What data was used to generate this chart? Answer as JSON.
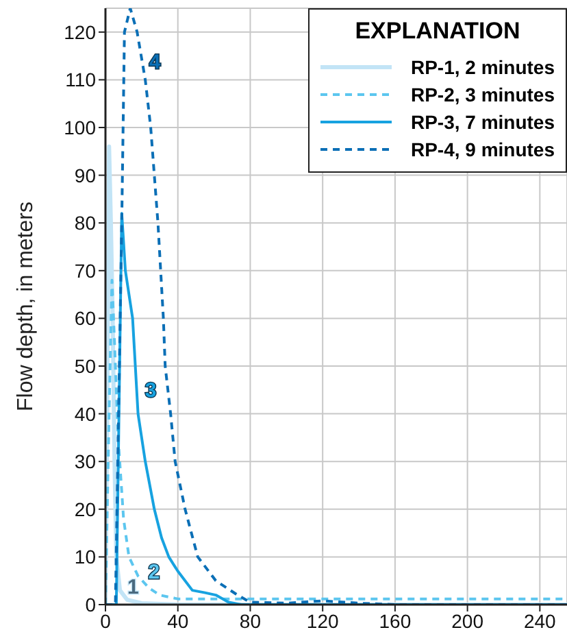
{
  "chart_data": {
    "type": "line",
    "ylabel": "Flow depth, in meters",
    "legend_title": "EXPLANATION",
    "legend": "top right",
    "grid": true,
    "marker": "none",
    "xlim": [
      0,
      255
    ],
    "xticks": [
      0,
      40,
      80,
      120,
      160,
      200,
      240
    ],
    "ylim": [
      0,
      125
    ],
    "yticks": [
      0,
      10,
      20,
      30,
      40,
      50,
      60,
      70,
      80,
      90,
      100,
      110,
      120
    ],
    "series": [
      {
        "name": "RP-1, 2 minutes",
        "color": "#c2e4f6",
        "line_style": "solid",
        "x": [
          0,
          1,
          2,
          3,
          4,
          5,
          6,
          8,
          12,
          20,
          40,
          255
        ],
        "values": [
          0,
          40,
          96,
          80,
          60,
          30,
          10,
          3,
          1,
          0.3,
          0,
          0
        ]
      },
      {
        "name": "RP-2, 3 minutes",
        "color": "#5cc6ef",
        "line_style": "dashed",
        "x": [
          0,
          2,
          3.6,
          5,
          7,
          10,
          13,
          18,
          24,
          30,
          40,
          60,
          255
        ],
        "values": [
          0,
          40,
          68,
          55,
          35,
          18,
          10,
          6,
          3.5,
          2,
          1.2,
          1.2,
          1.2
        ]
      },
      {
        "name": "RP-3, 7 minutes",
        "color": "#17a2e0",
        "line_style": "solid",
        "x": [
          0,
          6,
          9,
          11,
          15,
          18,
          22,
          27,
          31,
          35,
          40,
          48,
          55,
          61,
          68,
          75,
          255
        ],
        "values": [
          0,
          0,
          82,
          70,
          60,
          40,
          30,
          20,
          14,
          10,
          7,
          3,
          2.5,
          2,
          0.5,
          0,
          0
        ]
      },
      {
        "name": "RP-4, 9 minutes",
        "color": "#0b6fb6",
        "line_style": "dashed",
        "x": [
          0,
          5.5,
          9,
          10.5,
          13.7,
          17.5,
          22,
          25,
          29,
          32,
          33,
          36,
          38.5,
          44,
          51,
          61,
          73,
          80,
          100,
          120,
          140,
          160,
          255
        ],
        "values": [
          0,
          0,
          80,
          120,
          125,
          120,
          110,
          100,
          80,
          60,
          50,
          40,
          30,
          20,
          10,
          5,
          2,
          0.5,
          0.3,
          0.8,
          0.3,
          0,
          0
        ]
      }
    ],
    "annotations": [
      "1",
      "2",
      "3",
      "4"
    ]
  }
}
